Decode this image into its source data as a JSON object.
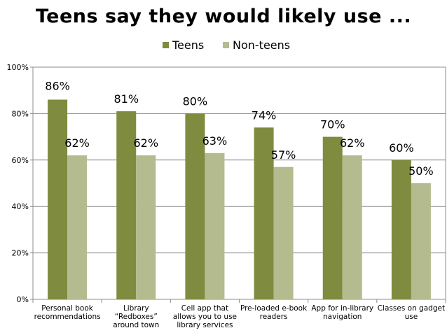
{
  "chart_data": {
    "type": "bar",
    "title": "Teens say they would likely use ...",
    "categories": [
      [
        "Personal book",
        "recommendations"
      ],
      [
        "Library",
        "“Redboxes”",
        "around town"
      ],
      [
        "Cell app that",
        "allows you to  use",
        "library services"
      ],
      [
        "Pre-loaded e-book",
        "readers"
      ],
      [
        "App for in-library",
        "navigation"
      ],
      [
        "Classes on gadget",
        "use"
      ]
    ],
    "series": [
      {
        "name": "Teens",
        "color": "#7f8b3f",
        "values": [
          86,
          81,
          80,
          74,
          70,
          60
        ],
        "labels": [
          "86%",
          "81%",
          "80%",
          "74%",
          "70%",
          "60%"
        ]
      },
      {
        "name": "Non-teens",
        "color": "#b4bb8f",
        "values": [
          62,
          62,
          63,
          57,
          62,
          50
        ],
        "labels": [
          "62%",
          "62%",
          "63%",
          "57%",
          "62%",
          "50%"
        ]
      }
    ],
    "ylim": [
      0,
      100
    ],
    "yticks": [
      0,
      20,
      40,
      60,
      80,
      100
    ],
    "ytick_labels": [
      "0%",
      "20%",
      "40%",
      "60%",
      "80%",
      "100%"
    ],
    "grid": true,
    "legend": "top-center",
    "xlabel": "",
    "ylabel": ""
  }
}
